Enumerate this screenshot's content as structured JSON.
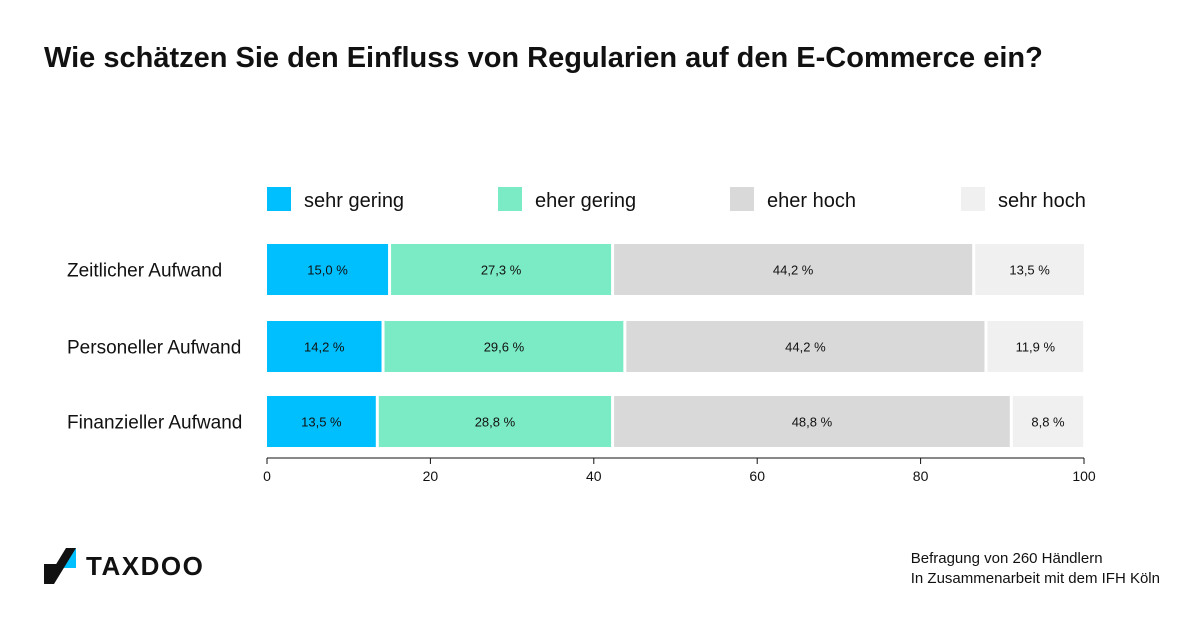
{
  "title": "Wie schätzen Sie den Einfluss von Regularien auf den E-Commerce ein?",
  "brand": {
    "name": "TAXDOO",
    "colors": {
      "dark": "#111111",
      "accent": "#00BFFF"
    }
  },
  "footnote": {
    "line1": "Befragung von 260 Händlern",
    "line2": "In Zusammenarbeit mit dem IFH Köln"
  },
  "chart_data": {
    "type": "bar",
    "orientation": "horizontal",
    "stacked": true,
    "categories": [
      "Zeitlicher Aufwand",
      "Personeller Aufwand",
      "Finanzieller Aufwand"
    ],
    "series": [
      {
        "name": "sehr gering",
        "color": "#00BFFF",
        "values": [
          15.0,
          14.2,
          13.5
        ],
        "labels": [
          "15,0 %",
          "14,2 %",
          "13,5 %"
        ]
      },
      {
        "name": "eher gering",
        "color": "#7BEBC6",
        "values": [
          27.3,
          29.6,
          28.8
        ],
        "labels": [
          "27,3 %",
          "29,6 %",
          "28,8 %"
        ]
      },
      {
        "name": "eher hoch",
        "color": "#D9D9D9",
        "values": [
          44.2,
          44.2,
          48.8
        ],
        "labels": [
          "44,2 %",
          "44,2 %",
          "48,8 %"
        ]
      },
      {
        "name": "sehr hoch",
        "color": "#F0F0F0",
        "values": [
          13.5,
          11.9,
          8.8
        ],
        "labels": [
          "13,5 %",
          "11,9 %",
          "8,8 %"
        ]
      }
    ],
    "xlim": [
      0,
      100
    ],
    "xticks": [
      0,
      20,
      40,
      60,
      80,
      100
    ],
    "grid": false,
    "legend": "top"
  }
}
